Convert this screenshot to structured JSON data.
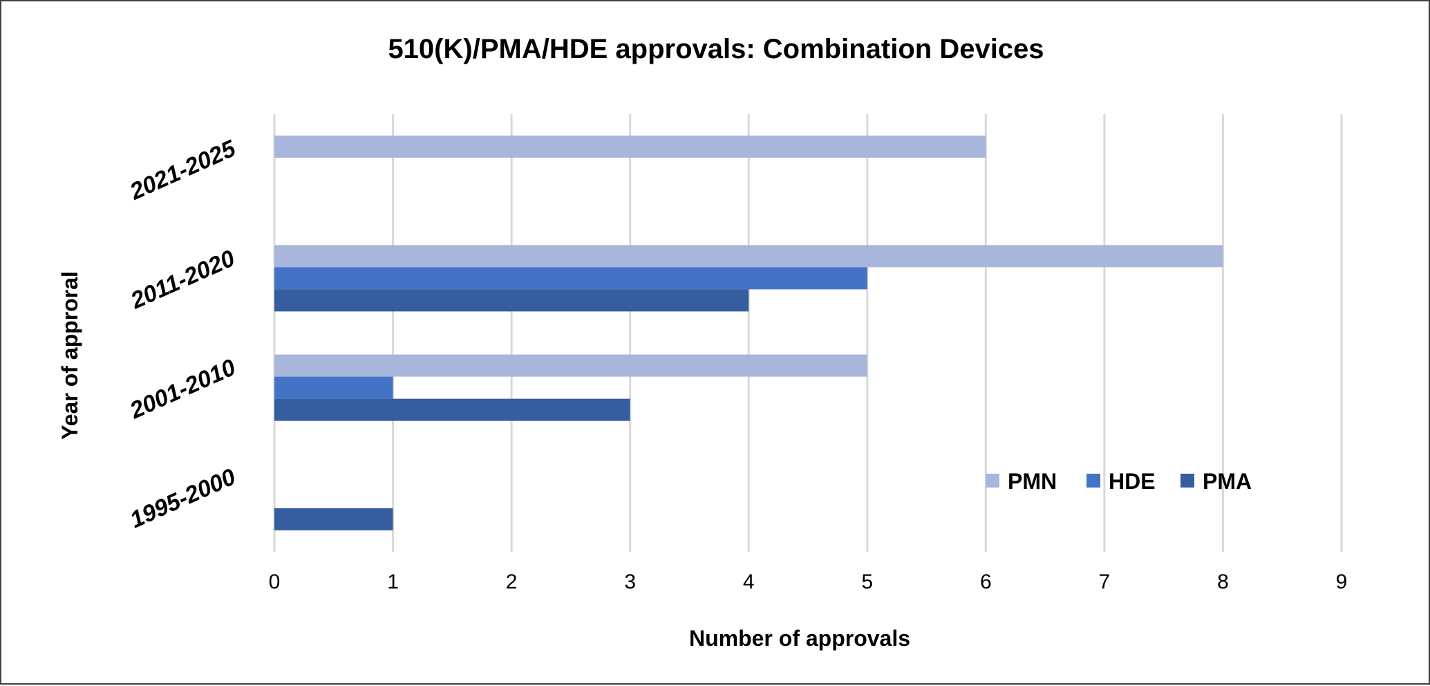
{
  "chart_data": {
    "type": "bar",
    "orientation": "horizontal",
    "title": "510(K)/PMA/HDE approvals: Combination Devices",
    "xlabel": "Number of approvals",
    "ylabel": "Year of approral",
    "categories": [
      "1995-2000",
      "2001-2010",
      "2011-2020",
      "2021-2025"
    ],
    "series": [
      {
        "name": "PMN",
        "color": "#a9b6dc",
        "values": [
          0,
          5,
          8,
          6
        ]
      },
      {
        "name": "HDE",
        "color": "#4472c4",
        "values": [
          0,
          1,
          5,
          0
        ]
      },
      {
        "name": "PMA",
        "color": "#365d9f",
        "values": [
          1,
          3,
          4,
          0
        ]
      }
    ],
    "xlim": [
      0,
      9
    ],
    "xticks": [
      "0",
      "1",
      "2",
      "3",
      "4",
      "5",
      "6",
      "7",
      "8",
      "9"
    ],
    "grid": "vertical",
    "legend": "inside-lower-right"
  }
}
